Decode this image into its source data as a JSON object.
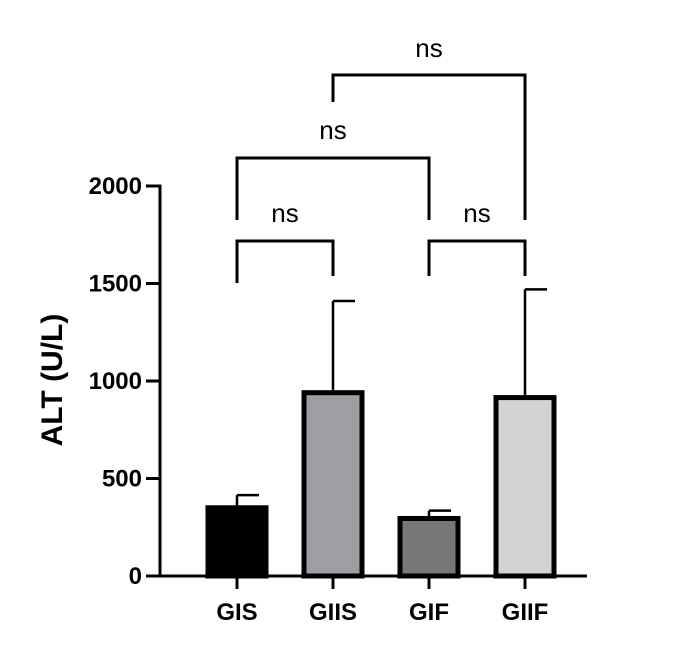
{
  "chart_data": {
    "type": "bar",
    "title": "",
    "xlabel": "",
    "ylabel": "ALT (U/L)",
    "ylim": [
      0,
      2000
    ],
    "yticks": [
      0,
      500,
      1000,
      1500,
      2000
    ],
    "categories": [
      "GIS",
      "GIIS",
      "GIF",
      "GIIF"
    ],
    "values": [
      350,
      940,
      295,
      915
    ],
    "error_upper": [
      415,
      1410,
      335,
      1470
    ],
    "bar_colors": [
      "#000000",
      "#9e9ea2",
      "#777777",
      "#d3d3d3"
    ],
    "grid": false,
    "comparisons": [
      {
        "from": "GIS",
        "to": "GIIS",
        "label": "ns"
      },
      {
        "from": "GIF",
        "to": "GIIF",
        "label": "ns"
      },
      {
        "from": "GIS",
        "to": "GIF",
        "label": "ns"
      },
      {
        "from": "GIIS",
        "to": "GIIF",
        "label": "ns"
      }
    ]
  }
}
